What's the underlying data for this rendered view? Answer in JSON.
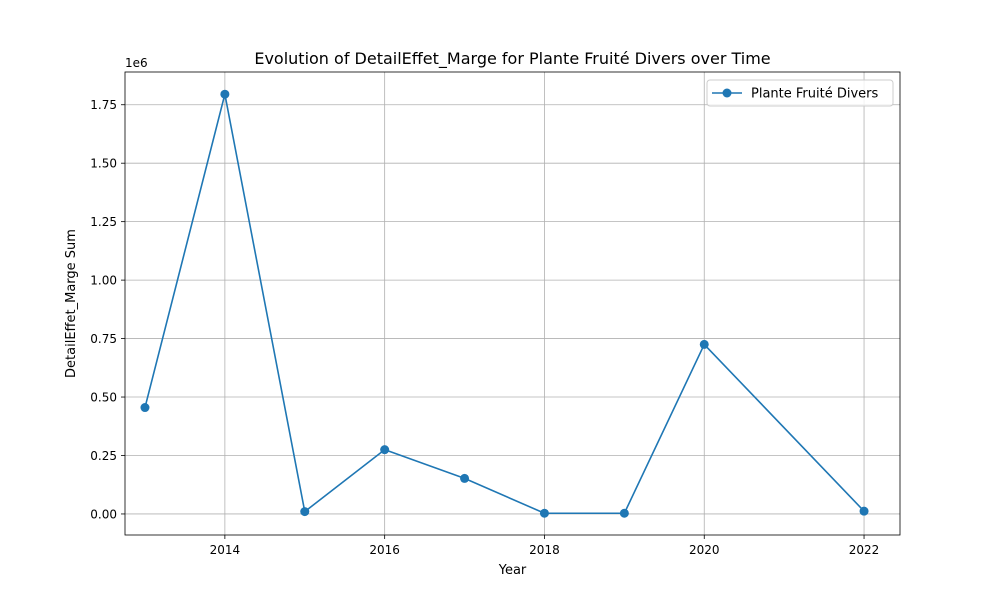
{
  "chart_data": {
    "type": "line",
    "title": "Evolution of DetailEffet_Marge for Plante Fruité Divers over Time",
    "xlabel": "Year",
    "ylabel": "DetailEffet_Marge Sum",
    "y_offset_label": "1e6",
    "y_scale_factor": 1000000,
    "xlim": [
      2012.75,
      2022.45
    ],
    "ylim": [
      -90000,
      1890000
    ],
    "x_ticks": [
      2014,
      2016,
      2018,
      2020,
      2022
    ],
    "y_ticks": [
      0,
      250000,
      500000,
      750000,
      1000000,
      1250000,
      1500000,
      1750000
    ],
    "y_tick_labels": [
      "0.00",
      "0.25",
      "0.50",
      "0.75",
      "1.00",
      "1.25",
      "1.50",
      "1.75"
    ],
    "grid": true,
    "legend_position": "upper right",
    "series": [
      {
        "name": "Plante Fruité Divers",
        "color": "#1f77b4",
        "marker": "circle",
        "x": [
          2013,
          2014,
          2015,
          2016,
          2017,
          2018,
          2019,
          2020,
          2022
        ],
        "y": [
          455000,
          1795000,
          10000,
          275000,
          152000,
          3000,
          3000,
          725000,
          12000
        ]
      }
    ]
  }
}
